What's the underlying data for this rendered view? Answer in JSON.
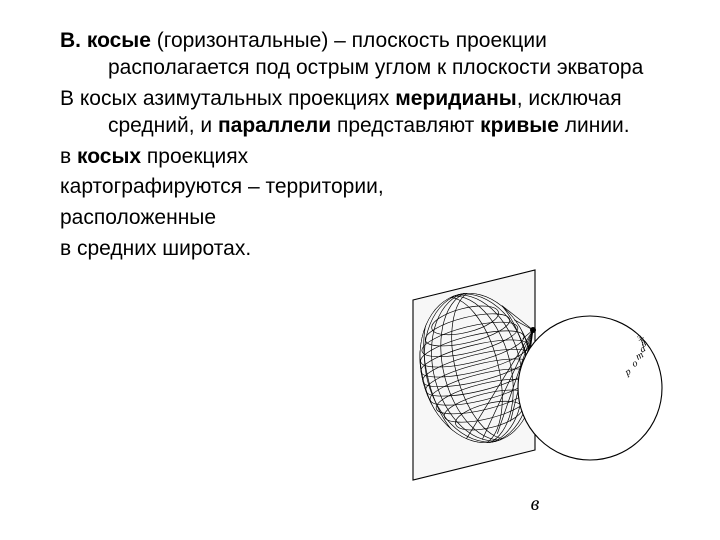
{
  "text": {
    "p1_a": "В. косые",
    "p1_b": " (горизонтальные) – плоскость проекции располагается под острым углом к плоскости экватора",
    "p2_a": "В косых азимутальных проекциях ",
    "p2_b": "меридианы",
    "p2_c": ", исключая средний, и ",
    "p2_d": "параллели",
    "p2_e": " представляют ",
    "p2_f": "кривые",
    "p2_g": " линии.",
    "p3_a": "в ",
    "p3_b": "косых",
    "p3_c": " проекциях",
    "p4": "картографируются – территории,",
    "p5": " расположенные",
    "p6": "в средних широтах."
  },
  "figure": {
    "caption": "в",
    "equator_label": "экватор",
    "colors": {
      "stroke": "#000000",
      "bg": "#ffffff",
      "plane_fill": "#f7f7f7"
    },
    "style": {
      "line_width_thin": 0.7,
      "line_width_med": 1.1,
      "font_label_size": 10
    }
  }
}
